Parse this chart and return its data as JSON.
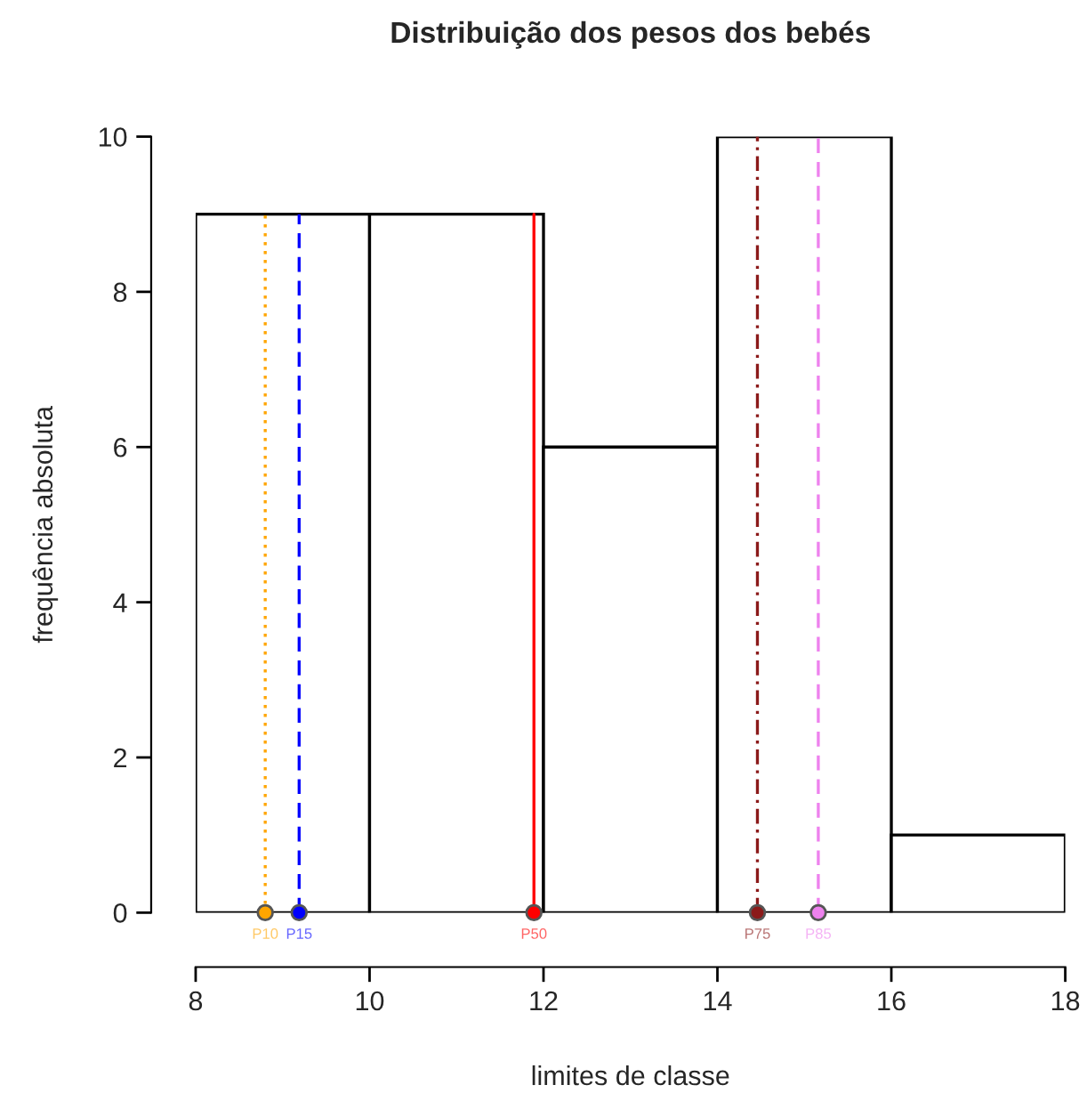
{
  "chart_data": {
    "type": "histogram",
    "title": "Distribuição dos pesos dos bebés",
    "xlabel": "limites de classe",
    "ylabel": "frequência absoluta",
    "bins": [
      8,
      10,
      12,
      14,
      16,
      18
    ],
    "values": [
      9,
      9,
      6,
      10,
      1
    ],
    "color": "#ffffff",
    "xlim": [
      8,
      18
    ],
    "xticks": [
      8,
      10,
      12,
      14,
      16,
      18
    ],
    "ylim": [
      0,
      10
    ],
    "yticks": [
      0,
      2,
      4,
      6,
      8,
      10
    ],
    "grid": false,
    "ref_lines": [
      {
        "axis": "x",
        "value": 8.8,
        "color": "#ffa500",
        "line_style": "dotted"
      },
      {
        "axis": "x",
        "value": 9.19,
        "color": "#0000ff",
        "line_style": "dashed"
      },
      {
        "axis": "x",
        "value": 11.89,
        "color": "#ff0000",
        "line_style": "solid"
      },
      {
        "axis": "x",
        "value": 14.46,
        "color": "#8b1a1a",
        "line_style": "dashdot"
      },
      {
        "axis": "x",
        "value": 15.16,
        "color": "#ee82ee",
        "line_style": "dashed"
      }
    ],
    "series": [
      {
        "type": "scatter",
        "name": "P10",
        "color": "#ffa500",
        "x": [
          8.8
        ],
        "values": [
          0
        ],
        "marker": "circle"
      },
      {
        "type": "scatter",
        "name": "P15",
        "color": "#0000ff",
        "x": [
          9.19
        ],
        "values": [
          0
        ],
        "marker": "circle"
      },
      {
        "type": "scatter",
        "name": "P50",
        "color": "#ff0000",
        "x": [
          11.89
        ],
        "values": [
          0
        ],
        "marker": "circle"
      },
      {
        "type": "scatter",
        "name": "P75",
        "color": "#8b1a1a",
        "x": [
          14.46
        ],
        "values": [
          0
        ],
        "marker": "circle"
      },
      {
        "type": "scatter",
        "name": "P85",
        "color": "#ee82ee",
        "x": [
          15.16
        ],
        "values": [
          0
        ],
        "marker": "circle"
      }
    ]
  }
}
